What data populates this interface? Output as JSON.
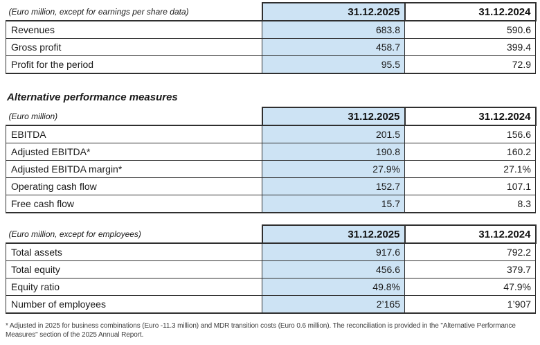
{
  "colors": {
    "column_2025_highlight": "#cde3f4",
    "table_border": "#2f2f2f",
    "text": "#1a1a1a"
  },
  "section_heading": "Alternative performance measures",
  "tables": [
    {
      "unit": "(Euro million, except for earnings per share data)",
      "col2025": "31.12.2025",
      "col2024": "31.12.2024",
      "rows": [
        {
          "label": "Revenues",
          "v2025": "683.8",
          "v2024": "590.6"
        },
        {
          "label": "Gross profit",
          "v2025": "458.7",
          "v2024": "399.4"
        },
        {
          "label": "Profit for the period",
          "v2025": "95.5",
          "v2024": "72.9"
        }
      ]
    },
    {
      "unit": "(Euro million)",
      "col2025": "31.12.2025",
      "col2024": "31.12.2024",
      "rows": [
        {
          "label": "EBITDA",
          "v2025": "201.5",
          "v2024": "156.6"
        },
        {
          "label": "Adjusted EBITDA*",
          "v2025": "190.8",
          "v2024": "160.2"
        },
        {
          "label": "Adjusted EBITDA margin*",
          "v2025": "27.9%",
          "v2024": "27.1%"
        },
        {
          "label": "Operating cash flow",
          "v2025": "152.7",
          "v2024": "107.1"
        },
        {
          "label": "Free cash flow",
          "v2025": "15.7",
          "v2024": "8.3"
        }
      ]
    },
    {
      "unit": "(Euro million, except for employees)",
      "col2025": "31.12.2025",
      "col2024": "31.12.2024",
      "rows": [
        {
          "label": "Total assets",
          "v2025": "917.6",
          "v2024": "792.2"
        },
        {
          "label": "Total equity",
          "v2025": "456.6",
          "v2024": "379.7"
        },
        {
          "label": "Equity ratio",
          "v2025": "49.8%",
          "v2024": "47.9%"
        },
        {
          "label": "Number of employees",
          "v2025": "2’165",
          "v2024": "1’907"
        }
      ]
    }
  ],
  "footnote": "* Adjusted in 2025 for business combinations (Euro -11.3 million) and MDR transition costs (Euro 0.6 million). The reconciliation is provided in the \"Alternative Performance Measures\" section of the 2025 Annual Report."
}
